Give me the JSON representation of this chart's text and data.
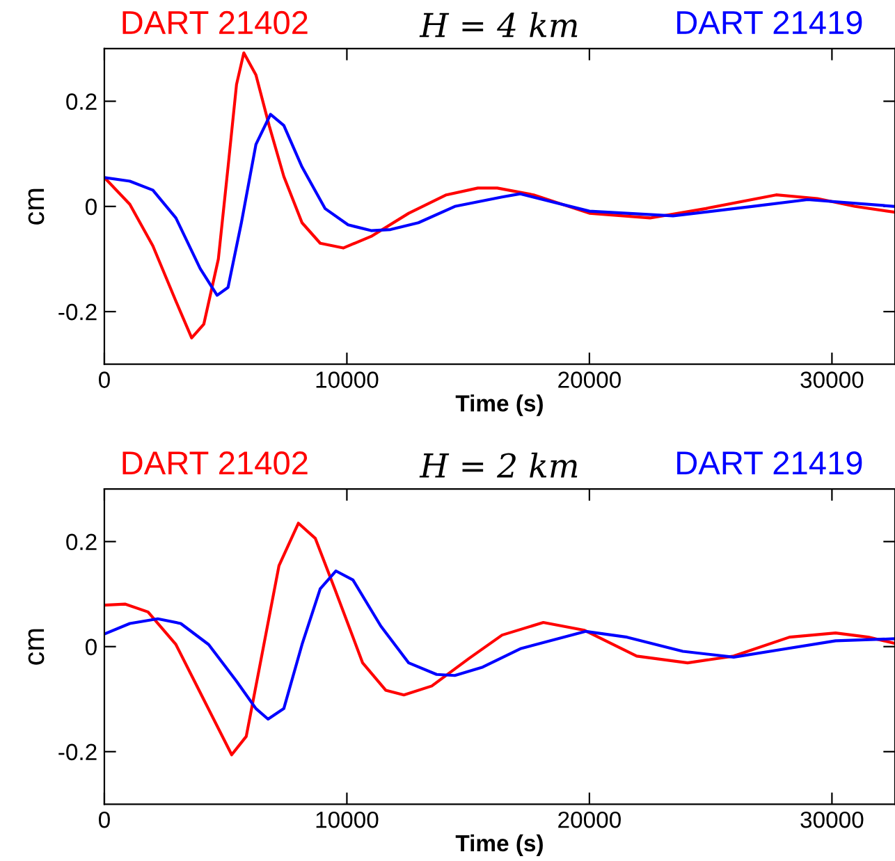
{
  "chart_data": [
    {
      "type": "line",
      "title": "H = 4 km",
      "xlabel": "Time (s)",
      "ylabel": "cm",
      "xlim": [
        0,
        32600
      ],
      "ylim": [
        -0.3,
        0.3
      ],
      "xticks": [
        0,
        10000,
        20000,
        30000
      ],
      "yticks": [
        {
          "value": -0.2,
          "label": "-0.2"
        },
        0,
        0.2
      ],
      "grid": false,
      "legend": false,
      "marker": "none",
      "line_style": "solid",
      "series": [
        {
          "name": "DART 21402",
          "color": "#ff0000",
          "x": [
            0,
            1050,
            2000,
            2950,
            3600,
            4100,
            4700,
            5100,
            5450,
            5750,
            6250,
            6800,
            7400,
            8150,
            8900,
            9850,
            11000,
            12550,
            14100,
            15400,
            16200,
            17700,
            20000,
            22500,
            24800,
            27700,
            29400,
            30950,
            32600
          ],
          "values": [
            0.055,
            0.004,
            -0.075,
            -0.18,
            -0.25,
            -0.224,
            -0.1,
            0.075,
            0.232,
            0.292,
            0.25,
            0.153,
            0.057,
            -0.031,
            -0.07,
            -0.079,
            -0.057,
            -0.013,
            0.022,
            0.035,
            0.035,
            0.022,
            -0.013,
            -0.022,
            -0.004,
            0.022,
            0.015,
            0,
            -0.011
          ]
        },
        {
          "name": "DART 21419",
          "color": "#0000ff",
          "x": [
            0,
            1050,
            2000,
            2950,
            3950,
            4650,
            5100,
            5650,
            6250,
            6850,
            7400,
            8150,
            9100,
            10050,
            11000,
            11800,
            12950,
            14450,
            16400,
            17150,
            20000,
            23450,
            26700,
            29000,
            32600
          ],
          "values": [
            0.055,
            0.048,
            0.031,
            -0.022,
            -0.118,
            -0.169,
            -0.154,
            -0.031,
            0.118,
            0.175,
            0.154,
            0.075,
            -0.004,
            -0.035,
            -0.046,
            -0.044,
            -0.031,
            0,
            0.018,
            0.024,
            -0.009,
            -0.018,
            0,
            0.013,
            0
          ]
        }
      ]
    },
    {
      "type": "line",
      "title": "H = 2 km",
      "xlabel": "Time (s)",
      "ylabel": "cm",
      "xlim": [
        0,
        32600
      ],
      "ylim": [
        -0.3,
        0.3
      ],
      "xticks": [
        0,
        10000,
        20000,
        30000
      ],
      "yticks": [
        {
          "value": -0.2,
          "label": "-0.2"
        },
        0,
        0.2
      ],
      "grid": false,
      "legend": false,
      "marker": "none",
      "line_style": "solid",
      "series": [
        {
          "name": "DART 21402",
          "color": "#ff0000",
          "x": [
            0,
            850,
            1800,
            2950,
            4100,
            5250,
            5850,
            6400,
            7200,
            8000,
            8700,
            9500,
            10650,
            11600,
            12350,
            13500,
            15050,
            16400,
            18100,
            19800,
            21950,
            24050,
            25950,
            28250,
            30150,
            31500,
            32600
          ],
          "values": [
            0.079,
            0.081,
            0.066,
            0.004,
            -0.101,
            -0.206,
            -0.171,
            -0.039,
            0.154,
            0.235,
            0.206,
            0.11,
            -0.031,
            -0.083,
            -0.092,
            -0.075,
            -0.022,
            0.022,
            0.046,
            0.031,
            -0.018,
            -0.031,
            -0.018,
            0.018,
            0.026,
            0.018,
            0.006
          ]
        },
        {
          "name": "DART 21419",
          "color": "#0000ff",
          "x": [
            0,
            1050,
            2200,
            3150,
            4300,
            5450,
            6250,
            6750,
            7400,
            8150,
            8900,
            9550,
            10250,
            11400,
            12550,
            13700,
            14450,
            15600,
            17150,
            19850,
            21550,
            23850,
            25950,
            27850,
            30150,
            32600
          ],
          "values": [
            0.024,
            0.044,
            0.053,
            0.044,
            0.004,
            -0.066,
            -0.118,
            -0.138,
            -0.118,
            0.004,
            0.11,
            0.144,
            0.127,
            0.039,
            -0.031,
            -0.053,
            -0.055,
            -0.039,
            -0.004,
            0.029,
            0.018,
            -0.009,
            -0.02,
            -0.006,
            0.011,
            0.015
          ]
        }
      ]
    }
  ]
}
